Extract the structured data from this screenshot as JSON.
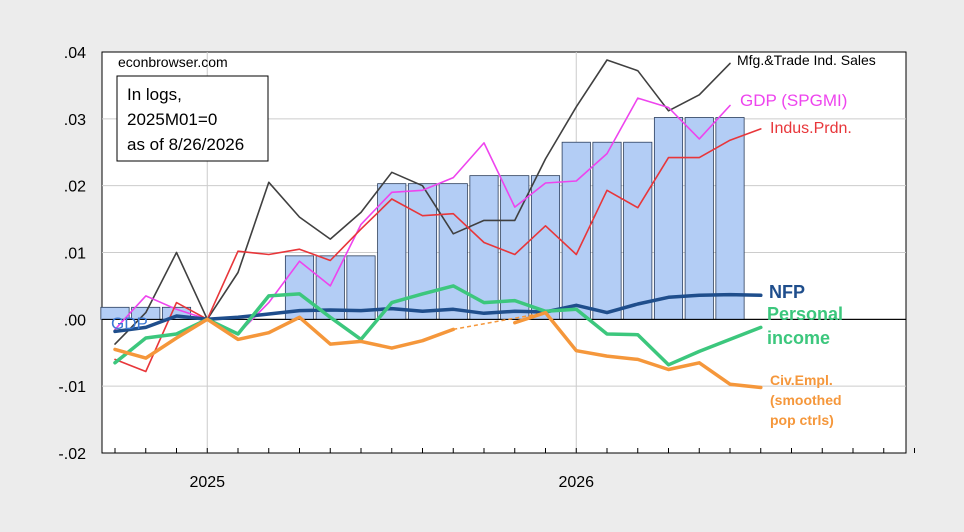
{
  "chart_data": {
    "type": "line",
    "title": "",
    "xlabel": "",
    "ylabel": "",
    "ylim": [
      -0.02,
      0.04
    ],
    "y_ticks": [
      ".04",
      ".03",
      ".02",
      ".01",
      ".00",
      "-.01",
      "-.02"
    ],
    "y_tick_values": [
      0.04,
      0.03,
      0.02,
      0.01,
      0.0,
      -0.01,
      -0.02
    ],
    "x_ticks": [
      {
        "label": "2025",
        "month_index": 3
      },
      {
        "label": "2026",
        "month_index": 15
      }
    ],
    "months": [
      "2024M10",
      "2024M11",
      "2024M12",
      "2025M01",
      "2025M02",
      "2025M03",
      "2025M04",
      "2025M05",
      "2025M06",
      "2025M07",
      "2025M08",
      "2025M09",
      "2025M10",
      "2025M11",
      "2025M12",
      "2026M01",
      "2026M02",
      "2026M03",
      "2026M04",
      "2026M05",
      "2026M06",
      "2026M07",
      "2026M08",
      "2026M09",
      "2026M10",
      "2026M11",
      "2026M12"
    ],
    "grid": true,
    "source_label": "econbrowser.com",
    "note_lines": [
      "In logs,",
      "2025M01=0",
      "as of 8/26/2026"
    ],
    "gdp_bars": {
      "name": "GDP",
      "color": "#b3cdf5",
      "values": [
        0.0018,
        0.0018,
        0.0018,
        0.0,
        0.0,
        0.0,
        0.0095,
        0.0095,
        0.0095,
        0.0203,
        0.0203,
        0.0203,
        0.0215,
        0.0215,
        0.0215,
        0.0265,
        0.0265,
        0.0265,
        0.0302,
        0.0302,
        0.0302,
        null,
        null,
        null,
        null,
        null,
        null
      ]
    },
    "series": [
      {
        "name": "Mfg.&Trade Ind. Sales",
        "color": "#404040",
        "width": 1.6,
        "values": [
          -0.0037,
          0.001,
          0.01,
          0.0,
          0.007,
          0.0205,
          0.0153,
          0.012,
          0.016,
          0.022,
          0.02,
          0.0128,
          0.0148,
          0.0148,
          0.024,
          0.0318,
          0.0388,
          0.0372,
          0.0312,
          0.0336,
          0.0383,
          null,
          null,
          null,
          null,
          null,
          null
        ]
      },
      {
        "name": "GDP (SPGMI)",
        "color": "#ee44ee",
        "width": 1.6,
        "values": [
          -0.0015,
          0.0035,
          0.0015,
          0.0,
          -0.0022,
          0.0025,
          0.0087,
          0.005,
          0.0142,
          0.019,
          0.0193,
          0.0212,
          0.0264,
          0.0168,
          0.0204,
          0.0207,
          0.0248,
          0.0331,
          0.0317,
          0.027,
          0.032,
          null,
          null,
          null,
          null,
          null,
          null
        ]
      },
      {
        "name": "Indus.Prdn.",
        "color": "#e8363a",
        "width": 1.6,
        "values": [
          -0.006,
          -0.0078,
          0.0025,
          0.0,
          0.0102,
          0.0097,
          0.0105,
          0.0088,
          0.0135,
          0.018,
          0.0155,
          0.0158,
          0.0115,
          0.0097,
          0.014,
          0.0097,
          0.0193,
          0.0167,
          0.0242,
          0.0242,
          0.0268,
          0.0285,
          null,
          null,
          null,
          null,
          null
        ]
      },
      {
        "name": "NFP",
        "color": "#1f4e8c",
        "width": 3.5,
        "values": [
          -0.0018,
          -0.0012,
          0.0005,
          0.0,
          0.0003,
          0.0008,
          0.0013,
          0.0014,
          0.0013,
          0.0016,
          0.0012,
          0.0015,
          0.0009,
          0.0012,
          0.0011,
          0.0021,
          0.001,
          0.0023,
          0.0033,
          0.0036,
          0.0037,
          0.0036,
          null,
          null,
          null,
          null,
          null
        ]
      },
      {
        "name": "Personal income",
        "color": "#3cc77d",
        "width": 3.5,
        "values": [
          -0.0065,
          -0.0028,
          -0.0022,
          0.0,
          -0.0022,
          0.0035,
          0.0038,
          0.0003,
          -0.003,
          0.0025,
          0.0038,
          0.005,
          0.0025,
          0.0028,
          0.0012,
          0.0015,
          -0.0022,
          -0.0023,
          -0.0068,
          -0.0048,
          -0.003,
          -0.0012,
          null,
          null,
          null,
          null,
          null
        ]
      },
      {
        "name": "Civ.Empl. (smoothed pop ctrls)",
        "color": "#f5973b",
        "width": 3.5,
        "values": [
          -0.0045,
          -0.0058,
          -0.0028,
          0.0,
          -0.003,
          -0.002,
          0.0003,
          -0.0037,
          -0.0033,
          -0.0043,
          -0.0032,
          -0.0015,
          null,
          -0.0005,
          0.001,
          -0.0047,
          -0.0055,
          -0.006,
          -0.0075,
          -0.0065,
          -0.0097,
          -0.0102,
          null,
          null,
          null,
          null,
          null
        ],
        "dashed_segment": [
          11,
          14
        ]
      }
    ],
    "labels": {
      "mfg": "Mfg.&Trade Ind. Sales",
      "gdp_spgmi": "GDP (SPGMI)",
      "ip": "Indus.Prdn.",
      "nfp": "NFP",
      "pi_1": "Personal",
      "pi_2": "income",
      "ce_1": "Civ.Empl.",
      "ce_2": "(smoothed",
      "ce_3": "pop ctrls)",
      "gdp": "GDP"
    }
  }
}
